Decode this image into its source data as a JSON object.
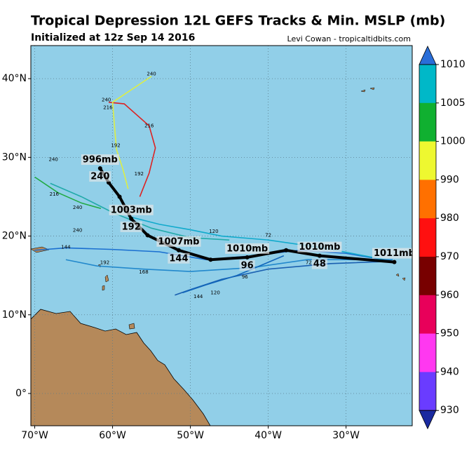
{
  "chart_data": {
    "type": "track-map",
    "title": "Tropical Depression 12L GEFS Tracks & Min. MSLP (mb)",
    "subtitle": "Initialized at 12z Sep 14 2016",
    "credit": "Levi Cowan - tropicaltidbits.com",
    "xlim": [
      -70.5,
      -21.5
    ],
    "ylim": [
      -4.1,
      44.2
    ],
    "xticks": [
      {
        "value": -70,
        "label": "70°W"
      },
      {
        "value": -60,
        "label": "60°W"
      },
      {
        "value": -50,
        "label": "50°W"
      },
      {
        "value": -40,
        "label": "40°W"
      },
      {
        "value": -30,
        "label": "30°W"
      }
    ],
    "yticks": [
      {
        "value": 0,
        "label": "0°"
      },
      {
        "value": 10,
        "label": "10°N"
      },
      {
        "value": 20,
        "label": "20°N"
      },
      {
        "value": 30,
        "label": "30°N"
      },
      {
        "value": 40,
        "label": "40°N"
      }
    ],
    "grid": true,
    "colorbar": {
      "ticks": [
        1010,
        1005,
        1000,
        990,
        980,
        970,
        960,
        950,
        940,
        930
      ],
      "colors": [
        "#00b8c8",
        "#10b030",
        "#eef830",
        "#ff7000",
        "#ff1010",
        "#780000",
        "#e8005a",
        "#ff38f0",
        "#6a3cff"
      ],
      "over_color": "#2a6ed8",
      "under_color": "#1a2aa0"
    },
    "members": [
      {
        "color": "#dd2222",
        "points": [
          [
            -56.5,
            25
          ],
          [
            -55.3,
            28
          ],
          [
            -54.5,
            31.2
          ],
          [
            -55.3,
            34
          ],
          [
            -58.5,
            36.8
          ],
          [
            -60.5,
            37
          ]
        ],
        "labels": [
          {
            "text": "192",
            "lon": -56.6,
            "lat": 27.9
          },
          {
            "text": "216",
            "lon": -55.3,
            "lat": 34.0
          }
        ]
      },
      {
        "color": "#ddee44",
        "points": [
          [
            -55,
            40.3
          ],
          [
            -60,
            37
          ],
          [
            -59.5,
            31
          ],
          [
            -58.7,
            28.6
          ],
          [
            -58,
            26
          ]
        ],
        "labels": [
          {
            "text": "240",
            "lon": -55,
            "lat": 40.6
          },
          {
            "text": "240",
            "lon": -60.8,
            "lat": 37.3
          },
          {
            "text": "216",
            "lon": -60.6,
            "lat": 36.3
          },
          {
            "text": "192",
            "lon": -59.6,
            "lat": 31.5
          }
        ]
      },
      {
        "color": "#22aa44",
        "points": [
          [
            -70,
            27.5
          ],
          [
            -67,
            25.5
          ],
          [
            -64,
            24.2
          ],
          [
            -61.5,
            23.5
          ]
        ],
        "labels": [
          {
            "text": "216",
            "lon": -67.5,
            "lat": 25.3
          },
          {
            "text": "240",
            "lon": -67.6,
            "lat": 29.7
          }
        ]
      },
      {
        "color": "#1a6fd0",
        "points": [
          [
            -24,
            16.8
          ],
          [
            -30,
            17.8
          ],
          [
            -36,
            18.2
          ],
          [
            -42,
            17.5
          ],
          [
            -48,
            17
          ],
          [
            -54,
            18
          ],
          [
            -60,
            18.3
          ],
          [
            -66,
            18.5
          ],
          [
            -70,
            18.2
          ]
        ],
        "labels": [
          {
            "text": "144",
            "lon": -66,
            "lat": 18.6
          }
        ]
      },
      {
        "color": "#1a5fb0",
        "points": [
          [
            -24,
            16.8
          ],
          [
            -32,
            16.5
          ],
          [
            -40,
            15.8
          ],
          [
            -46,
            14.5
          ],
          [
            -50,
            13.2
          ],
          [
            -52,
            12.5
          ]
        ],
        "labels": [
          {
            "text": "120",
            "lon": -46.8,
            "lat": 12.8
          },
          {
            "text": "144",
            "lon": -49,
            "lat": 12.3
          }
        ]
      },
      {
        "color": "#11aacc",
        "points": [
          [
            -25,
            17
          ],
          [
            -33,
            18.5
          ],
          [
            -40,
            19.5
          ],
          [
            -46,
            20
          ],
          [
            -50,
            20.8
          ],
          [
            -54,
            21.5
          ],
          [
            -58,
            22.5
          ]
        ],
        "labels": [
          {
            "text": "72",
            "lon": -40,
            "lat": 20.1
          },
          {
            "text": "120",
            "lon": -47,
            "lat": 20.6
          }
        ]
      },
      {
        "color": "#2288cc",
        "points": [
          [
            -24,
            17
          ],
          [
            -35,
            17
          ],
          [
            -42,
            16
          ],
          [
            -50,
            15.5
          ],
          [
            -56,
            15.8
          ],
          [
            -62,
            16.2
          ],
          [
            -66,
            17
          ]
        ],
        "labels": [
          {
            "text": "72",
            "lon": -34.8,
            "lat": 16.6
          },
          {
            "text": "168",
            "lon": -56,
            "lat": 15.4
          },
          {
            "text": "192",
            "lon": -61,
            "lat": 16.6
          }
        ]
      },
      {
        "color": "#1166bb",
        "points": [
          [
            -38,
            17.5
          ],
          [
            -44,
            15
          ],
          [
            -48,
            13.8
          ],
          [
            -51,
            12.8
          ]
        ],
        "labels": [
          {
            "text": "96",
            "lon": -43,
            "lat": 14.8
          }
        ]
      },
      {
        "color": "#22aaaa",
        "points": [
          [
            -45,
            19.5
          ],
          [
            -50,
            19.8
          ],
          [
            -55,
            21
          ],
          [
            -60,
            23
          ],
          [
            -64,
            25
          ],
          [
            -68,
            26.7
          ]
        ],
        "labels": [
          {
            "text": "240",
            "lon": -64.5,
            "lat": 23.6
          },
          {
            "text": "240",
            "lon": -64.5,
            "lat": 20.7
          }
        ]
      }
    ],
    "mean_track": {
      "color": "#000000",
      "points": [
        {
          "lon": -23.8,
          "lat": 16.7,
          "pressure_label": "1011mb"
        },
        {
          "lon": -33.4,
          "lat": 17.5,
          "pressure_label": "1010mb",
          "hour_label": "48"
        },
        {
          "lon": -37.7,
          "lat": 18.2
        },
        {
          "lon": -42.7,
          "lat": 17.3,
          "pressure_label": "1010mb",
          "hour_label": "96"
        },
        {
          "lon": -47.4,
          "lat": 17.0
        },
        {
          "lon": -51.5,
          "lat": 18.2,
          "pressure_label": "1007mb",
          "hour_label": "144"
        },
        {
          "lon": -55.5,
          "lat": 20.1
        },
        {
          "lon": -57.6,
          "lat": 22.2,
          "pressure_label": "1003mb",
          "hour_label": "192"
        },
        {
          "lon": -59.1,
          "lat": 25.0
        },
        {
          "lon": -60.5,
          "lat": 26.8
        },
        {
          "lon": -61.6,
          "lat": 28.6,
          "pressure_label": "996mb",
          "hour_label": "240"
        }
      ]
    }
  }
}
